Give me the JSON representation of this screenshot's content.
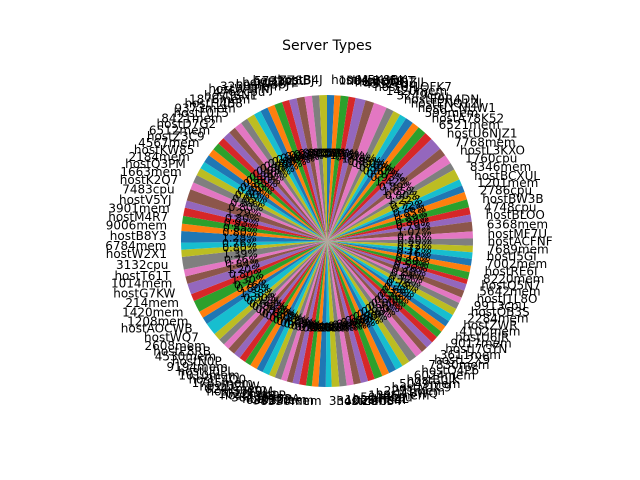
{
  "chart_data": {
    "type": "pie",
    "title": "Server Types",
    "start_angle_deg": 90,
    "direction": "clockwise",
    "colors": [
      "#1f77b4",
      "#ff7f0e",
      "#2ca02c",
      "#d62728",
      "#9467bd",
      "#8c564b",
      "#e377c2",
      "#7f7f7f",
      "#bcbd22",
      "#17becf"
    ],
    "slices": [
      {
        "label": "hostM5K8BK",
        "value": 1.0
      },
      {
        "label": "1004mem",
        "value": 0.85
      },
      {
        "label": "hostBU59JT",
        "value": 1.1
      },
      {
        "label": "hostQQDZJL",
        "value": 0.95
      },
      {
        "label": "4512cpu",
        "value": 1.4
      },
      {
        "label": "hostUJ1QFK7",
        "value": 1.2
      },
      {
        "label": "1420mem",
        "value": 1.82
      },
      {
        "label": "3249cpu",
        "value": 1.05
      },
      {
        "label": "hostE9R4DN",
        "value": 1.0
      },
      {
        "label": "hostENQ1ZI",
        "value": 0.95
      },
      {
        "label": "hostLCNUW1",
        "value": 1.1
      },
      {
        "label": "599mem",
        "value": 1.0
      },
      {
        "label": "hostA78K52",
        "value": 1.2
      },
      {
        "label": "6521mem",
        "value": 1.15
      },
      {
        "label": "hostU6NJZ1",
        "value": 1.77
      },
      {
        "label": "7768mem",
        "value": 1.1
      },
      {
        "label": "hostL3KXO",
        "value": 1.3
      },
      {
        "label": "1760cpu",
        "value": 1.0
      },
      {
        "label": "8346mem",
        "value": 1.51
      },
      {
        "label": "hostBCXUL",
        "value": 0.9
      },
      {
        "label": "1201mem",
        "value": 0.95
      },
      {
        "label": "2786cpu",
        "value": 1.05
      },
      {
        "label": "hostBW3B",
        "value": 1.1
      },
      {
        "label": "4748cpu",
        "value": 1.0
      },
      {
        "label": "hostBLOO",
        "value": 0.98
      },
      {
        "label": "6368mem",
        "value": 1.33
      },
      {
        "label": "hostMF7U",
        "value": 0.95
      },
      {
        "label": "hostACFNF",
        "value": 1.0
      },
      {
        "label": "7689mem",
        "value": 0.89
      },
      {
        "label": "hostI5GI",
        "value": 0.9
      },
      {
        "label": "7002mem",
        "value": 0.95
      },
      {
        "label": "hostRE6I",
        "value": 0.88
      },
      {
        "label": "8220mem",
        "value": 1.0
      },
      {
        "label": "hostQ5N7",
        "value": 0.66
      },
      {
        "label": "5642mem",
        "value": 0.95
      },
      {
        "label": "hostJ1L8O",
        "value": 1.0
      },
      {
        "label": "9913cpu",
        "value": 0.8
      },
      {
        "label": "hostOB3S",
        "value": 0.9
      },
      {
        "label": "2284mem",
        "value": 0.95
      },
      {
        "label": "hostZWR",
        "value": 0.98
      },
      {
        "label": "4102mem",
        "value": 0.85
      },
      {
        "label": "hostU6JR",
        "value": 0.9
      },
      {
        "label": "9017mem",
        "value": 0.95
      },
      {
        "label": "hostJ7GYN",
        "value": 0.97
      },
      {
        "label": "3611mem",
        "value": 1.0
      },
      {
        "label": "hostL2X9",
        "value": 0.9
      },
      {
        "label": "7830mem",
        "value": 1.0
      },
      {
        "label": "hostQ4P6",
        "value": 1.15
      },
      {
        "label": "6024mem",
        "value": 1.1
      },
      {
        "label": "hostB0JK",
        "value": 1.0
      },
      {
        "label": "5049mem",
        "value": 1.05
      },
      {
        "label": "hostM1C9",
        "value": 1.0
      },
      {
        "label": "2271mem",
        "value": 1.1
      },
      {
        "label": "hostT8WQ",
        "value": 0.95
      },
      {
        "label": "1326mem",
        "value": 1.0
      },
      {
        "label": "5013cpu",
        "value": 1.0
      },
      {
        "label": "hostPX4L",
        "value": 0.95
      },
      {
        "label": "1026mem",
        "value": 1.0
      },
      {
        "label": "hostZ9CS4",
        "value": 1.05
      },
      {
        "label": "3348mem",
        "value": 0.8
      },
      {
        "label": "8530mem",
        "value": 1.0
      },
      {
        "label": "3722mem",
        "value": 0.9
      },
      {
        "label": "6801mem",
        "value": 0.8
      },
      {
        "label": "hostR52A",
        "value": 0.95
      },
      {
        "label": "3823mem",
        "value": 0.91
      },
      {
        "label": "hostK3N1P",
        "value": 0.8
      },
      {
        "label": "1022mem",
        "value": 0.81
      },
      {
        "label": "hostS7Y0M",
        "value": 0.9
      },
      {
        "label": "8241mem",
        "value": 0.85
      },
      {
        "label": "hostD2LW",
        "value": 0.95
      },
      {
        "label": "1785mem",
        "value": 0.9
      },
      {
        "label": "hostF4Q0",
        "value": 1.0
      },
      {
        "label": "1010mem",
        "value": 0.85
      },
      {
        "label": "hostU0PL",
        "value": 0.9
      },
      {
        "label": "9194mem",
        "value": 0.95
      },
      {
        "label": "hostN0P",
        "value": 1.02
      },
      {
        "label": "4530mem",
        "value": 0.85
      },
      {
        "label": "hostE8RB",
        "value": 0.9
      },
      {
        "label": "2608mem",
        "value": 1.0
      },
      {
        "label": "hostWQ7",
        "value": 1.71
      },
      {
        "label": "hostAOCWB",
        "value": 1.0
      },
      {
        "label": "1208mem",
        "value": 0.95
      },
      {
        "label": "1420mem",
        "value": 1.61
      },
      {
        "label": "214mem",
        "value": 1.0
      },
      {
        "label": "hostG7KW",
        "value": 1.49
      },
      {
        "label": "1014mem",
        "value": 1.04
      },
      {
        "label": "hostT61T",
        "value": 0.95
      },
      {
        "label": "3132cpu",
        "value": 1.73
      },
      {
        "label": "hostW2X1",
        "value": 1.0
      },
      {
        "label": "6784mem",
        "value": 0.95
      },
      {
        "label": "hostB8Y3",
        "value": 1.59
      },
      {
        "label": "9006mem",
        "value": 1.0
      },
      {
        "label": "hostM4R7",
        "value": 1.05
      },
      {
        "label": "3901mem",
        "value": 1.15
      },
      {
        "label": "hostV5YJ",
        "value": 1.0
      },
      {
        "label": "7483cpu",
        "value": 1.6
      },
      {
        "label": "hostK2Q7",
        "value": 1.0
      },
      {
        "label": "1663mem",
        "value": 1.1
      },
      {
        "label": "hostQ3PM",
        "value": 1.05
      },
      {
        "label": "2184mem",
        "value": 1.0
      },
      {
        "label": "hostKW85",
        "value": 1.1
      },
      {
        "label": "4567mem",
        "value": 1.0
      },
      {
        "label": "hostZ3C9",
        "value": 1.05
      },
      {
        "label": "6512mem",
        "value": 1.0
      },
      {
        "label": "hostD7G2",
        "value": 1.1
      },
      {
        "label": "8421mem",
        "value": 1.0
      },
      {
        "label": "hostF0T5",
        "value": 1.05
      },
      {
        "label": "9373mem",
        "value": 1.0
      },
      {
        "label": "hostH4B8",
        "value": 1.1
      },
      {
        "label": "1876mem",
        "value": 1.0
      },
      {
        "label": "hostJ6N1",
        "value": 1.05
      },
      {
        "label": "4762cpu",
        "value": 1.0
      },
      {
        "label": "hostW1FNJ",
        "value": 1.1
      },
      {
        "label": "3258mem",
        "value": 1.0
      },
      {
        "label": "hostN38J",
        "value": 1.05
      },
      {
        "label": "hostB3PL",
        "value": 1.1
      },
      {
        "label": "5731cpu",
        "value": 1.0
      },
      {
        "label": "hostZZ8BJ",
        "value": 1.0
      },
      {
        "label": "hostB4J",
        "value": 1.05
      }
    ]
  }
}
